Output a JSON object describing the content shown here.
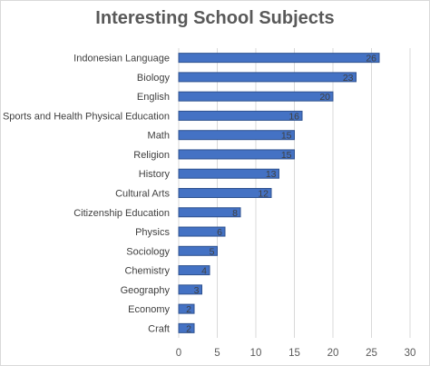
{
  "chart_data": {
    "type": "bar",
    "orientation": "horizontal",
    "title": "Interesting School Subjects",
    "categories": [
      "Indonesian Language",
      "Biology",
      "English",
      "Sports and Health Physical Education",
      "Math",
      "Religion",
      "History",
      "Cultural Arts",
      "Citizenship Education",
      "Physics",
      "Sociology",
      "Chemistry",
      "Geography",
      "Economy",
      "Craft"
    ],
    "values": [
      26,
      23,
      20,
      16,
      15,
      15,
      13,
      12,
      8,
      6,
      5,
      4,
      3,
      2,
      2
    ],
    "xlim": [
      0,
      30
    ],
    "xticks": [
      0,
      5,
      10,
      15,
      20,
      25,
      30
    ],
    "grid": "vertical",
    "legend": "none",
    "bar_color": "#4472c4",
    "bar_edge_color": "#2f528f"
  }
}
